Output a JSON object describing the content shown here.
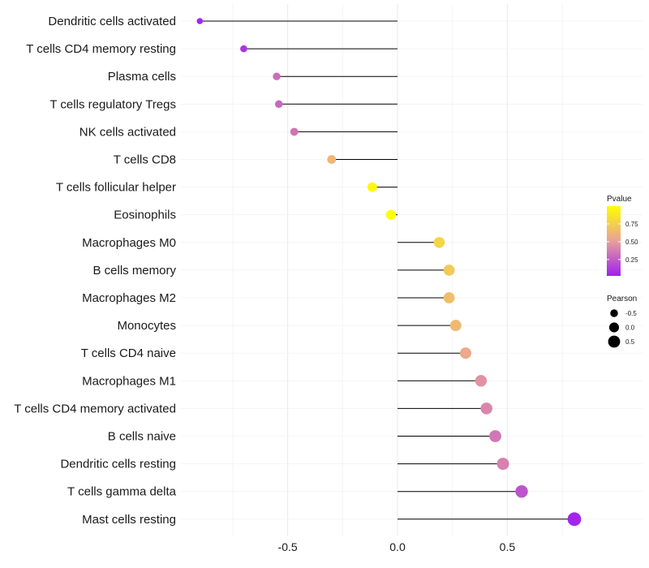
{
  "chart_data": {
    "type": "lollipop",
    "categories": [
      "Dendritic cells activated",
      "T cells CD4 memory resting",
      "Plasma cells",
      "T cells regulatory  Tregs ",
      "NK cells activated",
      "T cells CD8",
      "T cells follicular helper",
      "Eosinophils",
      "Macrophages M0",
      "B cells memory",
      "Macrophages M2",
      "Monocytes",
      "T cells CD4 naive",
      "Macrophages M1",
      "T cells CD4 memory activated",
      "B cells naive",
      "Dendritic cells resting",
      "T cells gamma delta",
      "Mast cells resting"
    ],
    "values": [
      -0.9,
      -0.7,
      -0.55,
      -0.54,
      -0.47,
      -0.3,
      -0.115,
      -0.03,
      0.19,
      0.235,
      0.235,
      0.265,
      0.31,
      0.38,
      0.405,
      0.445,
      0.48,
      0.565,
      0.805
    ],
    "pvalues": [
      0.02,
      0.08,
      0.3,
      0.28,
      0.33,
      0.62,
      0.97,
      1.0,
      0.78,
      0.72,
      0.66,
      0.63,
      0.55,
      0.45,
      0.4,
      0.34,
      0.38,
      0.2,
      0.02
    ],
    "xlim": [
      -0.97,
      0.84
    ],
    "x_ticks": [
      -0.5,
      0.0,
      0.5
    ],
    "x_tick_labels": [
      "-0.5",
      "0.0",
      "0.5"
    ],
    "color_scale": {
      "low": "#a020f0",
      "mid": "#e8a09a",
      "high": "#ffff00"
    },
    "stem_color": "#000000",
    "legend": {
      "pvalue_title": "Pvalue",
      "pvalue_breaks": [
        0.75,
        0.5,
        0.25
      ],
      "pvalue_labels": [
        "0.75",
        "0.50",
        "0.25"
      ],
      "pearson_title": "Pearson",
      "pearson_breaks": [
        -0.5,
        0.0,
        0.5
      ],
      "pearson_labels": [
        "-0.5",
        "0.0",
        "0.5"
      ]
    }
  }
}
